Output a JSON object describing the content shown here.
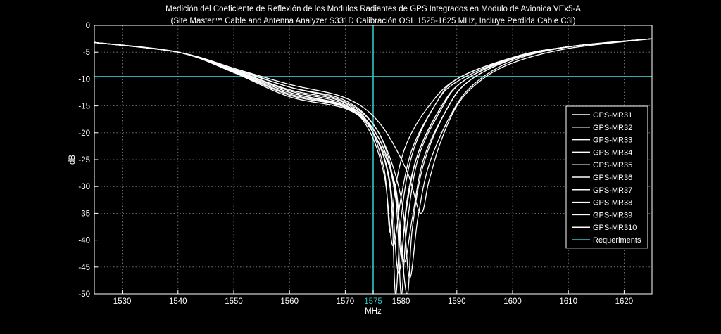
{
  "chart_data": {
    "type": "line",
    "title": "Medición del Coeficiente de Reflexión de los Modulos Radiantes de GPS Integrados en Modulo de Avionica VEx5-A",
    "subtitle": "(Site Master™ Cable and Antenna Analyzer S331D Calibración OSL 1525-1625 MHz, Incluye Perdida Cable C3i)",
    "xlabel": "MHz",
    "ylabel": "dB",
    "xlim": [
      1525,
      1625
    ],
    "ylim": [
      -50,
      0
    ],
    "xticks": [
      1530,
      1540,
      1550,
      1560,
      1570,
      1575,
      1580,
      1590,
      1600,
      1610,
      1620
    ],
    "yticks": [
      0,
      -5,
      -10,
      -15,
      -20,
      -25,
      -30,
      -35,
      -40,
      -45,
      -50
    ],
    "highlight_tick": 1575,
    "grid": true,
    "legend_position": "right",
    "background": "#000000",
    "axis_color": "#ffffff",
    "series_color": "#ffffff",
    "requirement_color": "#34c3c8",
    "series": [
      {
        "name": "GPS-MR31",
        "x": [
          1525,
          1540,
          1550,
          1560,
          1570,
          1574,
          1577,
          1578.0,
          1579,
          1581,
          1585,
          1590,
          1600,
          1610,
          1625
        ],
        "y": [
          -3.2,
          -5,
          -8.5,
          -12.5,
          -15,
          -18,
          -27,
          -38.5,
          -30,
          -22,
          -15,
          -10,
          -6,
          -4,
          -2.5
        ]
      },
      {
        "name": "GPS-MR32",
        "x": [
          1525,
          1540,
          1550,
          1560,
          1570,
          1575,
          1578,
          1579.0,
          1580,
          1582,
          1586,
          1590,
          1600,
          1610,
          1625
        ],
        "y": [
          -3.2,
          -5,
          -8.7,
          -13,
          -15.3,
          -20,
          -30,
          -50,
          -36,
          -24,
          -15,
          -10.5,
          -6,
          -4,
          -2.5
        ]
      },
      {
        "name": "GPS-MR33",
        "x": [
          1525,
          1540,
          1550,
          1560,
          1570,
          1576,
          1579,
          1580.0,
          1581,
          1583,
          1587,
          1591,
          1600,
          1610,
          1625
        ],
        "y": [
          -3.2,
          -5,
          -8.3,
          -12,
          -14.5,
          -21,
          -32,
          -50,
          -38,
          -25,
          -16,
          -10.5,
          -6.2,
          -4,
          -2.5
        ]
      },
      {
        "name": "GPS-MR34",
        "x": [
          1525,
          1540,
          1550,
          1560,
          1570,
          1575,
          1578,
          1579.5,
          1581,
          1583,
          1587,
          1591,
          1600,
          1610,
          1625
        ],
        "y": [
          -3.2,
          -5,
          -8.6,
          -12.8,
          -15.2,
          -20,
          -29,
          -46,
          -34,
          -24,
          -15.5,
          -10.5,
          -6,
          -4,
          -2.5
        ]
      },
      {
        "name": "GPS-MR35",
        "x": [
          1525,
          1540,
          1550,
          1560,
          1570,
          1576,
          1579,
          1580.5,
          1582,
          1584,
          1588,
          1592,
          1600,
          1610,
          1625
        ],
        "y": [
          -3.2,
          -5,
          -8.4,
          -12.2,
          -14.8,
          -21,
          -31,
          -44,
          -36,
          -25,
          -16,
          -10.5,
          -6.3,
          -4,
          -2.5
        ]
      },
      {
        "name": "GPS-MR36",
        "x": [
          1525,
          1540,
          1550,
          1560,
          1570,
          1576,
          1579,
          1581.0,
          1582,
          1584,
          1588,
          1592,
          1600,
          1610,
          1625
        ],
        "y": [
          -3.2,
          -5,
          -8.2,
          -11.5,
          -14.3,
          -20,
          -31,
          -50,
          -38,
          -26,
          -16,
          -10.5,
          -6.3,
          -4,
          -2.5
        ]
      },
      {
        "name": "GPS-MR37",
        "x": [
          1525,
          1540,
          1550,
          1560,
          1570,
          1576,
          1580,
          1581.5,
          1583,
          1585,
          1589,
          1593,
          1600,
          1610,
          1625
        ],
        "y": [
          -3.2,
          -5,
          -8,
          -11.5,
          -14,
          -20,
          -32,
          -47,
          -36,
          -26,
          -16.5,
          -11,
          -6.6,
          -4,
          -2.5
        ]
      },
      {
        "name": "GPS-MR38",
        "x": [
          1525,
          1540,
          1550,
          1560,
          1570,
          1574,
          1577,
          1578.5,
          1580,
          1582,
          1586,
          1590,
          1600,
          1610,
          1625
        ],
        "y": [
          -3.2,
          -5,
          -8.8,
          -13.3,
          -15.5,
          -19,
          -28,
          -41,
          -32,
          -23,
          -15,
          -10,
          -6,
          -4,
          -2.5
        ]
      },
      {
        "name": "GPS-MR39",
        "x": [
          1525,
          1540,
          1550,
          1560,
          1570,
          1575,
          1579,
          1580.0,
          1581,
          1583,
          1587,
          1591,
          1600,
          1610,
          1625
        ],
        "y": [
          -3.2,
          -5,
          -8.5,
          -12.5,
          -15,
          -20,
          -30,
          -43,
          -33,
          -24,
          -15.5,
          -10.5,
          -6,
          -4,
          -2.5
        ]
      },
      {
        "name": "GPS-MR310",
        "x": [
          1525,
          1540,
          1550,
          1560,
          1570,
          1576,
          1581,
          1583.5,
          1585,
          1587,
          1590,
          1594,
          1600,
          1610,
          1625
        ],
        "y": [
          -3.2,
          -5,
          -8,
          -11,
          -13.5,
          -18,
          -27,
          -35,
          -29,
          -22,
          -15,
          -10.5,
          -7,
          -4.3,
          -2.5
        ]
      }
    ],
    "requirement": {
      "name": "Requeriments",
      "y": -9.54,
      "x": 1575
    }
  }
}
